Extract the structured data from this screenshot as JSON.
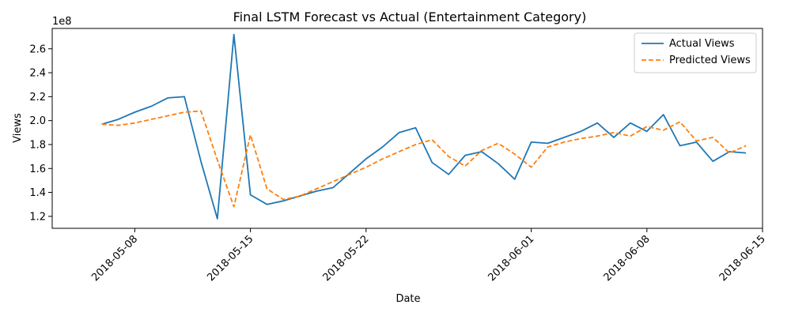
{
  "chart_data": {
    "type": "line",
    "title": "Final LSTM Forecast vs Actual (Entertainment Category)",
    "xlabel": "Date",
    "ylabel": "Views",
    "y_multiplier_label": "1e8",
    "legend_position": "top-right",
    "grid": false,
    "xlim": [
      "2018-05-03",
      "2018-06-15"
    ],
    "ylim": [
      1.1,
      2.77
    ],
    "x_ticks": [
      "2018-05-08",
      "2018-05-15",
      "2018-05-22",
      "2018-06-01",
      "2018-06-08",
      "2018-06-15"
    ],
    "y_ticks": [
      "1.2",
      "1.4",
      "1.6",
      "1.8",
      "2.0",
      "2.2",
      "2.4",
      "2.6"
    ],
    "x": [
      "2018-05-06",
      "2018-05-07",
      "2018-05-08",
      "2018-05-09",
      "2018-05-10",
      "2018-05-11",
      "2018-05-12",
      "2018-05-13",
      "2018-05-14",
      "2018-05-15",
      "2018-05-16",
      "2018-05-17",
      "2018-05-18",
      "2018-05-19",
      "2018-05-20",
      "2018-05-21",
      "2018-05-22",
      "2018-05-23",
      "2018-05-24",
      "2018-05-25",
      "2018-05-26",
      "2018-05-27",
      "2018-05-28",
      "2018-05-29",
      "2018-05-30",
      "2018-05-31",
      "2018-06-01",
      "2018-06-02",
      "2018-06-03",
      "2018-06-04",
      "2018-06-05",
      "2018-06-06",
      "2018-06-07",
      "2018-06-08",
      "2018-06-09",
      "2018-06-10",
      "2018-06-11",
      "2018-06-12",
      "2018-06-13",
      "2018-06-14"
    ],
    "series": [
      {
        "name": "Actual Views",
        "color": "#1f77b4",
        "dash": "solid",
        "values": [
          1.97,
          2.01,
          2.07,
          2.12,
          2.19,
          2.2,
          1.66,
          1.18,
          2.72,
          1.38,
          1.3,
          1.33,
          1.37,
          1.41,
          1.44,
          1.56,
          1.68,
          1.78,
          1.9,
          1.94,
          1.65,
          1.55,
          1.71,
          1.74,
          1.64,
          1.51,
          1.82,
          1.81,
          1.86,
          1.91,
          1.98,
          1.86,
          1.98,
          1.91,
          2.05,
          1.79,
          1.82,
          1.66,
          1.74,
          1.73
        ]
      },
      {
        "name": "Predicted Views",
        "color": "#ff7f0e",
        "dash": "dashed",
        "values": [
          1.97,
          1.96,
          1.98,
          2.01,
          2.04,
          2.07,
          2.08,
          1.67,
          1.28,
          1.88,
          1.43,
          1.34,
          1.37,
          1.43,
          1.49,
          1.55,
          1.61,
          1.68,
          1.74,
          1.8,
          1.84,
          1.7,
          1.62,
          1.75,
          1.81,
          1.72,
          1.61,
          1.78,
          1.82,
          1.85,
          1.87,
          1.9,
          1.87,
          1.95,
          1.92,
          1.99,
          1.83,
          1.86,
          1.73,
          1.79
        ]
      }
    ]
  }
}
